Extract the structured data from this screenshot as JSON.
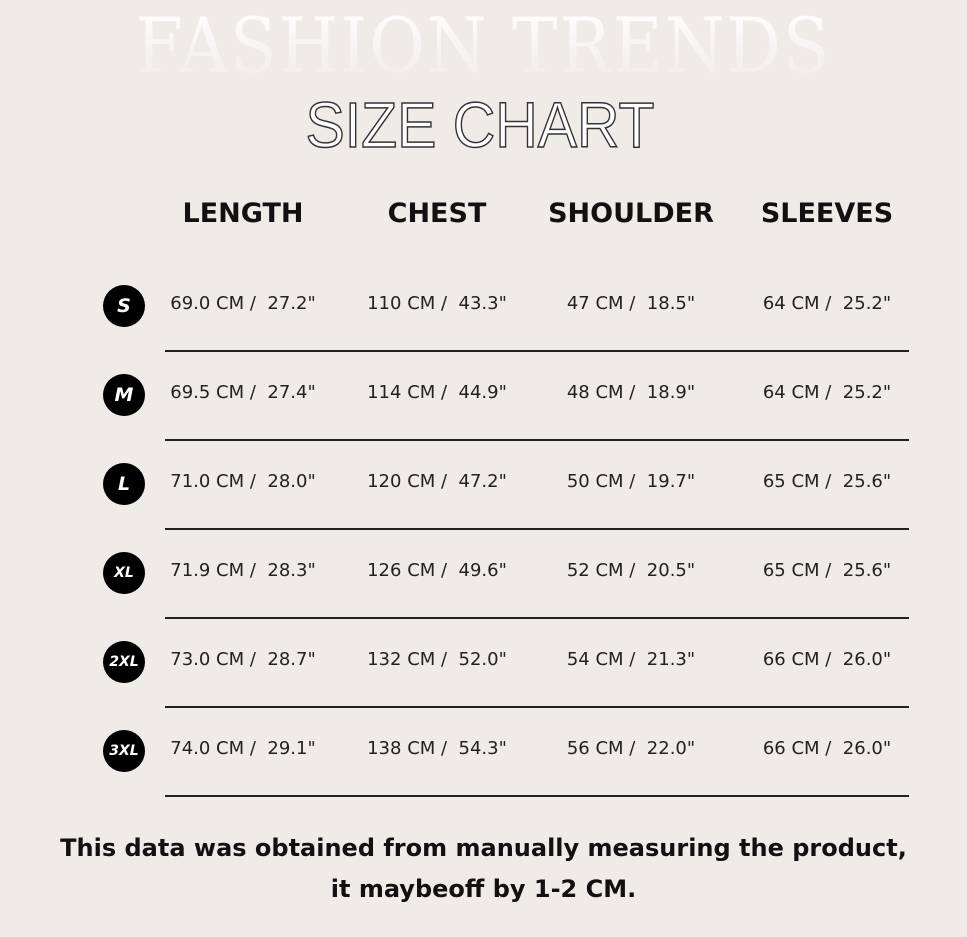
{
  "background_title": "FASHION TRENDS",
  "title": "SIZE CHART",
  "headers": [
    "LENGTH",
    "CHEST",
    "SHOULDER",
    "SLEEVES"
  ],
  "rows": [
    {
      "size": "S",
      "values": [
        "69.0 CM /  27.2\"",
        "110 CM /  43.3\"",
        "47 CM /  18.5\"",
        "64 CM /  25.2\""
      ]
    },
    {
      "size": "M",
      "values": [
        "69.5 CM /  27.4\"",
        "114 CM /  44.9\"",
        "48 CM /  18.9\"",
        "64 CM /  25.2\""
      ]
    },
    {
      "size": "L",
      "values": [
        "71.0 CM /  28.0\"",
        "120 CM /  47.2\"",
        "50 CM /  19.7\"",
        "65 CM /  25.6\""
      ]
    },
    {
      "size": "XL",
      "values": [
        "71.9 CM /  28.3\"",
        "126 CM /  49.6\"",
        "52 CM /  20.5\"",
        "65 CM /  25.6\""
      ]
    },
    {
      "size": "2XL",
      "values": [
        "73.0 CM /  28.7\"",
        "132 CM /  52.0\"",
        "54 CM /  21.3\"",
        "66 CM /  26.0\""
      ]
    },
    {
      "size": "3XL",
      "values": [
        "74.0 CM /  29.1\"",
        "138 CM /  54.3\"",
        "56 CM /  22.0\"",
        "66 CM /  26.0\""
      ]
    }
  ],
  "note": "This data was obtained from manually measuring the product, it maybeoff by 1-2 CM."
}
